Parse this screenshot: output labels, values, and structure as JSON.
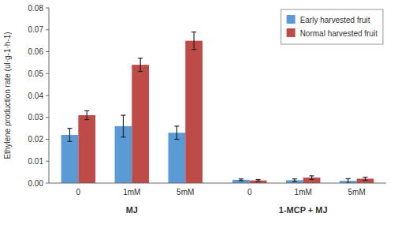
{
  "chart_data": {
    "type": "bar",
    "y_label": "Ethylene production rate (ul·g-1·h-1)",
    "categories": [
      "0",
      "1mM",
      "5mM",
      "0",
      "1mM",
      "5mM"
    ],
    "annotations": [
      "MJ",
      "1-MCP + MJ"
    ],
    "series": [
      {
        "name": "Early harvested fruit",
        "color": "#5B9BD5",
        "values": [
          0.022,
          0.026,
          0.023,
          0.0015,
          0.0013,
          0.001
        ],
        "errors": [
          0.003,
          0.005,
          0.003,
          0.0004,
          0.0006,
          0.001
        ]
      },
      {
        "name": "Normal harvested fruit",
        "color": "#BE4B48",
        "values": [
          0.031,
          0.054,
          0.065,
          0.0012,
          0.0025,
          0.002
        ],
        "errors": [
          0.002,
          0.003,
          0.004,
          0.0004,
          0.0008,
          0.0007
        ]
      }
    ],
    "ylim": [
      0,
      0.08
    ],
    "yticks": [
      {
        "value": 0,
        "label": "0.00"
      },
      0.01,
      0.02,
      0.03,
      0.04,
      0.05,
      0.06,
      0.07,
      0.08
    ],
    "legend": "upper right"
  }
}
